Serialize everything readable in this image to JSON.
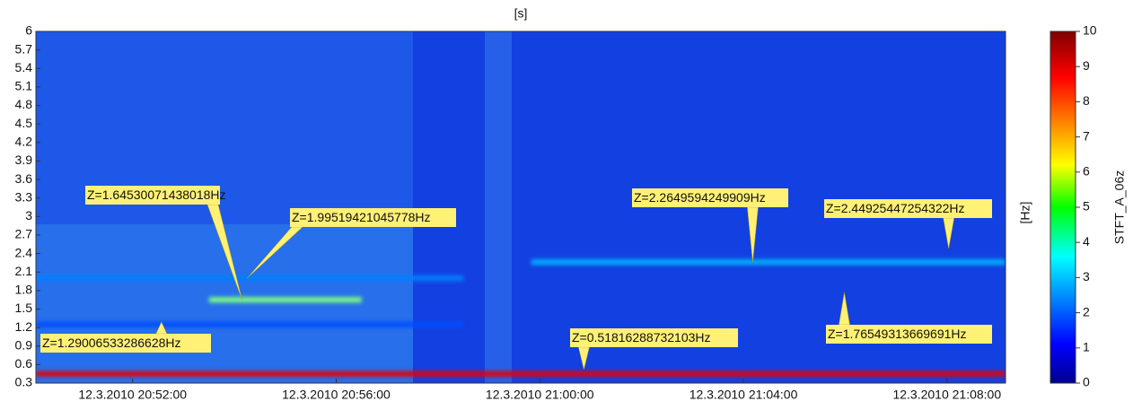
{
  "chart_data": {
    "type": "spectrogram",
    "title": "[s]",
    "y_label": "[Hz]",
    "colorbar_label": "STFT_A_06z",
    "xlim": [
      "2010-03-12T20:50:06",
      "2010-03-12T21:09:09"
    ],
    "xticks": [
      {
        "value": "2010-03-12T20:52:00",
        "label": "12.3.2010 20:52:00"
      },
      {
        "value": "2010-03-12T20:56:00",
        "label": "12.3.2010 20:56:00"
      },
      {
        "value": "2010-03-12T21:00:00",
        "label": "12.3.2010 21:00:00"
      },
      {
        "value": "2010-03-12T21:04:00",
        "label": "12.3.2010 21:04:00"
      },
      {
        "value": "2010-03-12T21:08:00",
        "label": "12.3.2010 21:08:00"
      }
    ],
    "ylim": [
      0.3,
      6
    ],
    "yticks": [
      0.3,
      0.6,
      0.9,
      1.2,
      1.5,
      1.8,
      2.1,
      2.4,
      2.7,
      3,
      3.3,
      3.6,
      3.9,
      4.2,
      4.5,
      4.8,
      5.1,
      5.4,
      5.7,
      6
    ],
    "clim": [
      0,
      10
    ],
    "cticks": [
      0,
      1,
      2,
      3,
      4,
      5,
      6,
      7,
      8,
      9,
      10
    ],
    "features": [
      {
        "x": [
          "2010-03-12T20:50:06",
          "2010-03-12T21:09:09"
        ],
        "y": 0.45,
        "z": 9
      },
      {
        "x": [
          "2010-03-12T20:59:50",
          "2010-03-12T21:09:09"
        ],
        "y": 2.26,
        "z": 3
      },
      {
        "x": [
          "2010-03-12T20:53:30",
          "2010-03-12T20:56:30"
        ],
        "y": 1.65,
        "z": 5
      },
      {
        "x": [
          "2010-03-12T20:50:06",
          "2010-03-12T20:58:30"
        ],
        "y": 2.0,
        "z": 2.5
      },
      {
        "x": [
          "2010-03-12T20:50:06",
          "2010-03-12T20:58:30"
        ],
        "y": 1.25,
        "z": 2
      }
    ],
    "annotations": [
      {
        "text": "Z=1.64530071438018Hz",
        "x": "2010-03-12T20:54:09",
        "y": 1.65
      },
      {
        "text": "Z=1.99519421045778Hz",
        "x": "2010-03-12T20:54:15",
        "y": 2.0
      },
      {
        "text": "Z=1.29006533286628Hz",
        "x": "2010-03-12T20:52:34",
        "y": 1.29
      },
      {
        "text": "Z=0.51816288732103Hz",
        "x": "2010-03-12T21:00:52",
        "y": 0.52
      },
      {
        "text": "Z=2.2649594249909Hz",
        "x": "2010-03-12T21:04:11",
        "y": 2.26
      },
      {
        "text": "Z=2.44925447254322Hz",
        "x": "2010-03-12T21:08:02",
        "y": 2.48
      },
      {
        "text": "Z=1.76549313669691Hz",
        "x": "2010-03-12T21:05:59",
        "y": 1.77
      }
    ]
  }
}
